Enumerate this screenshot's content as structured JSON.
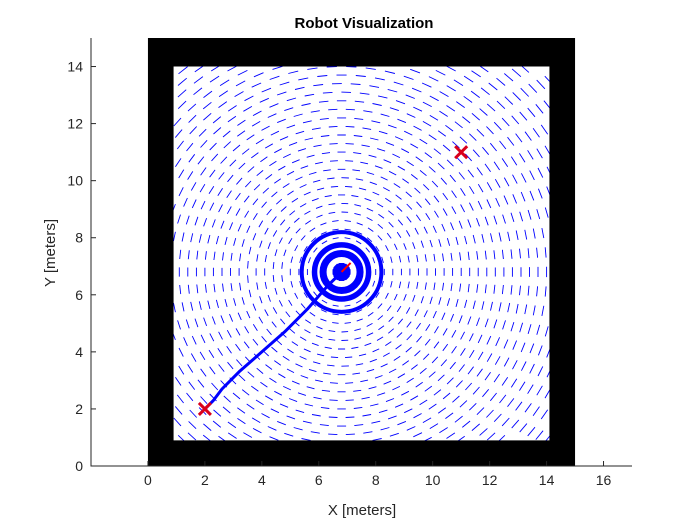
{
  "chart_data": {
    "type": "scatter",
    "title": "Robot Visualization",
    "xlabel": "X [meters]",
    "ylabel": "Y [meters]",
    "xlim": [
      -2,
      17
    ],
    "ylim": [
      0,
      15
    ],
    "xticks": [
      "0",
      "2",
      "4",
      "6",
      "8",
      "10",
      "12",
      "14",
      "16"
    ],
    "yticks": [
      "0",
      "2",
      "4",
      "6",
      "8",
      "10",
      "12",
      "14"
    ],
    "grid": false,
    "map": {
      "walls": {
        "outer": [
          0,
          0,
          15,
          15
        ],
        "free_space": [
          0.9,
          0.9,
          14.1,
          14
        ]
      },
      "wall_color": "#000000"
    },
    "vector_field": {
      "center": [
        6.8,
        6.8
      ],
      "direction": "tangential",
      "color": "#0000ff"
    },
    "path": {
      "color": "#0000ff",
      "x": [
        2.0,
        2.3,
        2.6,
        3.2,
        4.0,
        4.8,
        5.6,
        6.3,
        6.8
      ],
      "y": [
        2.0,
        2.3,
        2.7,
        3.3,
        4.0,
        4.7,
        5.5,
        6.3,
        6.8
      ]
    },
    "markers": [
      {
        "label": "start",
        "x": 2.0,
        "y": 2.0,
        "symbol": "x",
        "color": "#d9001b"
      },
      {
        "label": "goal",
        "x": 11.0,
        "y": 11.0,
        "symbol": "x",
        "color": "#d9001b"
      }
    ],
    "robot": {
      "x": 6.8,
      "y": 6.8,
      "heading_deg": 45,
      "color": "#0000ff",
      "heading_color": "#ff0000"
    }
  }
}
